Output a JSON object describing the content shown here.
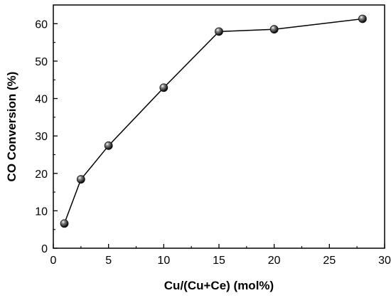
{
  "chart_data": {
    "type": "line",
    "xlabel": "Cu/(Cu+Ce) (mol%)",
    "ylabel": "CO Conversion (%)",
    "xlim": [
      0,
      30
    ],
    "ylim": [
      0,
      65
    ],
    "xticks": [
      0,
      5,
      10,
      15,
      20,
      25,
      30
    ],
    "yticks": [
      0,
      10,
      20,
      30,
      40,
      50,
      60
    ],
    "grid": false,
    "series": [
      {
        "x": [
          1,
          2.5,
          5,
          10,
          15,
          20,
          28
        ],
        "y": [
          6.6,
          18.4,
          27.4,
          42.9,
          57.9,
          58.5,
          61.3
        ]
      }
    ],
    "colors": {
      "line": "#000000",
      "marker": "#111111"
    }
  }
}
